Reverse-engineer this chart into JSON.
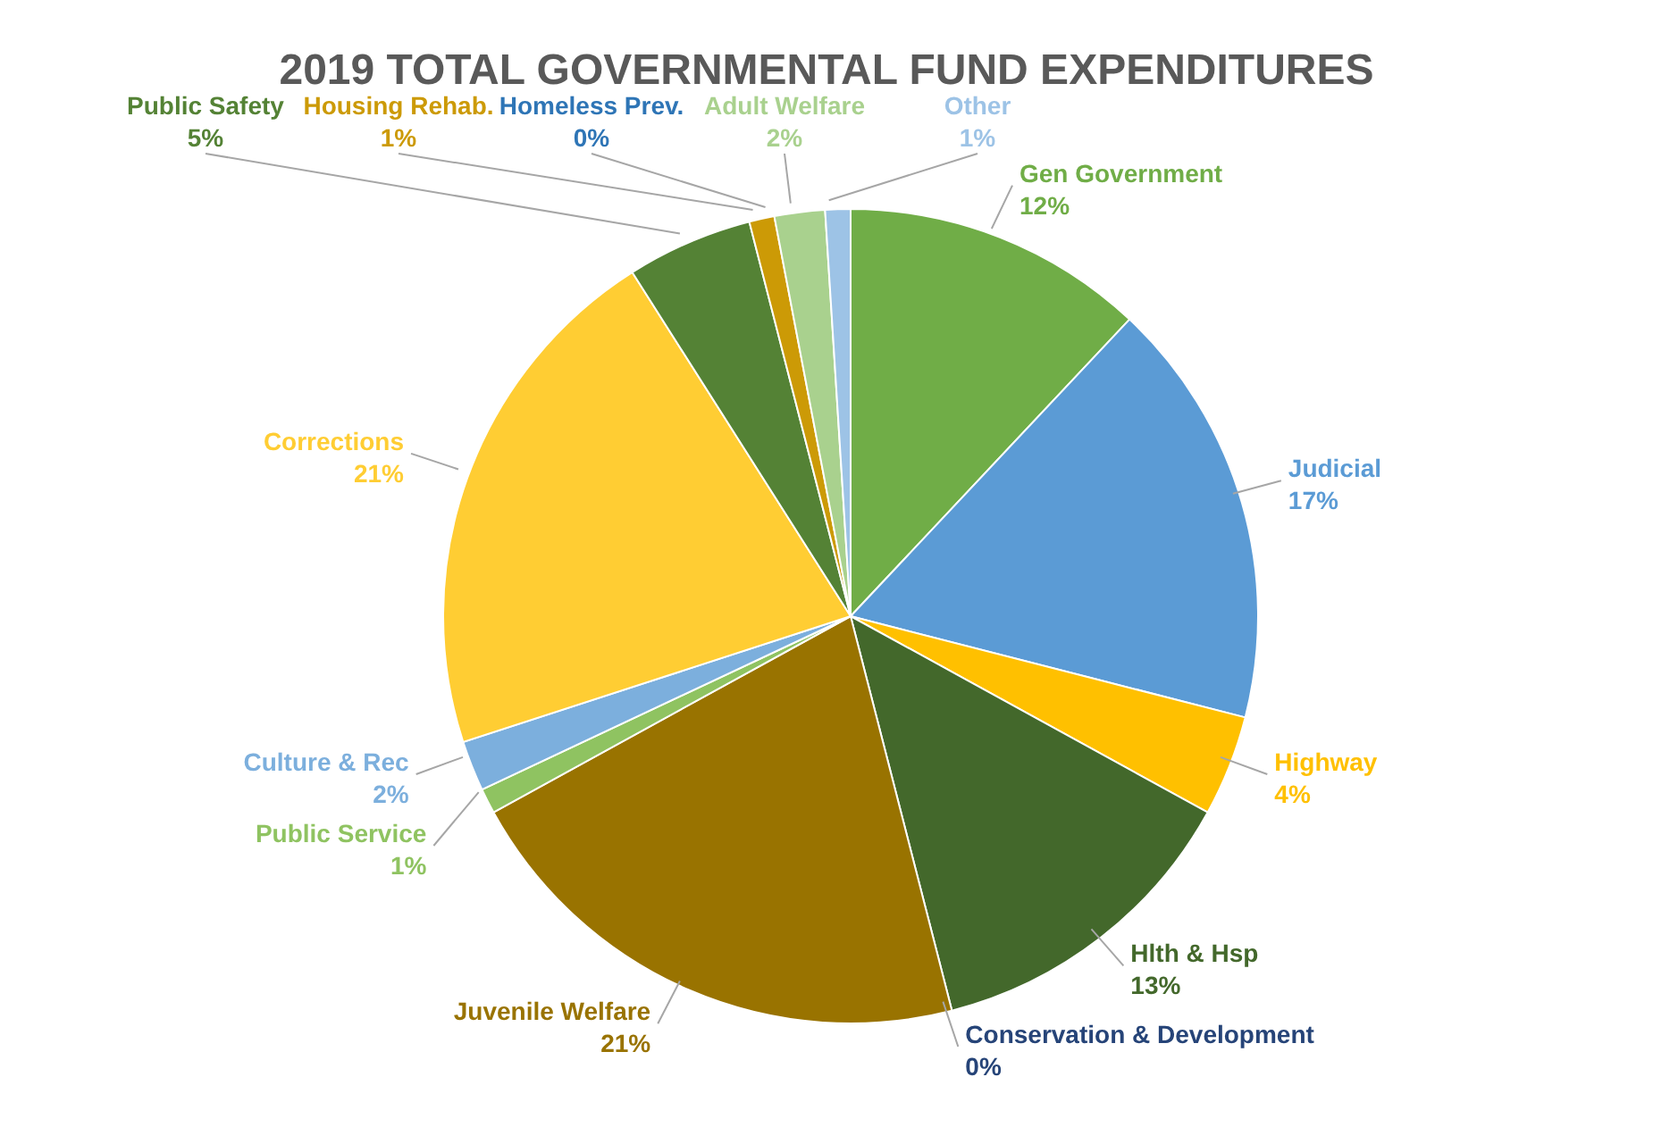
{
  "chart_data": {
    "type": "pie",
    "title": "2019 TOTAL GOVERNMENTAL FUND EXPENDITURES",
    "categories": [
      "Gen Government",
      "Judicial",
      "Highway",
      "Hlth & Hsp",
      "Conservation & Development",
      "Juvenile Welfare",
      "Public Service",
      "Culture & Rec",
      "Corrections",
      "Public Safety",
      "Housing Rehab.",
      "Homeless Prev.",
      "Adult Welfare",
      "Other"
    ],
    "values": [
      12,
      17,
      4,
      13,
      0,
      21,
      1,
      2,
      21,
      5,
      1,
      0,
      2,
      1
    ],
    "value_labels": [
      "12%",
      "17%",
      "4%",
      "13%",
      "0%",
      "21%",
      "1%",
      "2%",
      "21%",
      "5%",
      "1%",
      "0%",
      "2%",
      "1%"
    ],
    "colors": [
      "#70ad47",
      "#5b9bd5",
      "#ffc000",
      "#43682b",
      "#264478",
      "#997300",
      "#8fc361",
      "#7cafdd",
      "#ffcd33",
      "#548235",
      "#cc9a06",
      "#2e75b6",
      "#a9d18e",
      "#9dc3e6"
    ]
  }
}
